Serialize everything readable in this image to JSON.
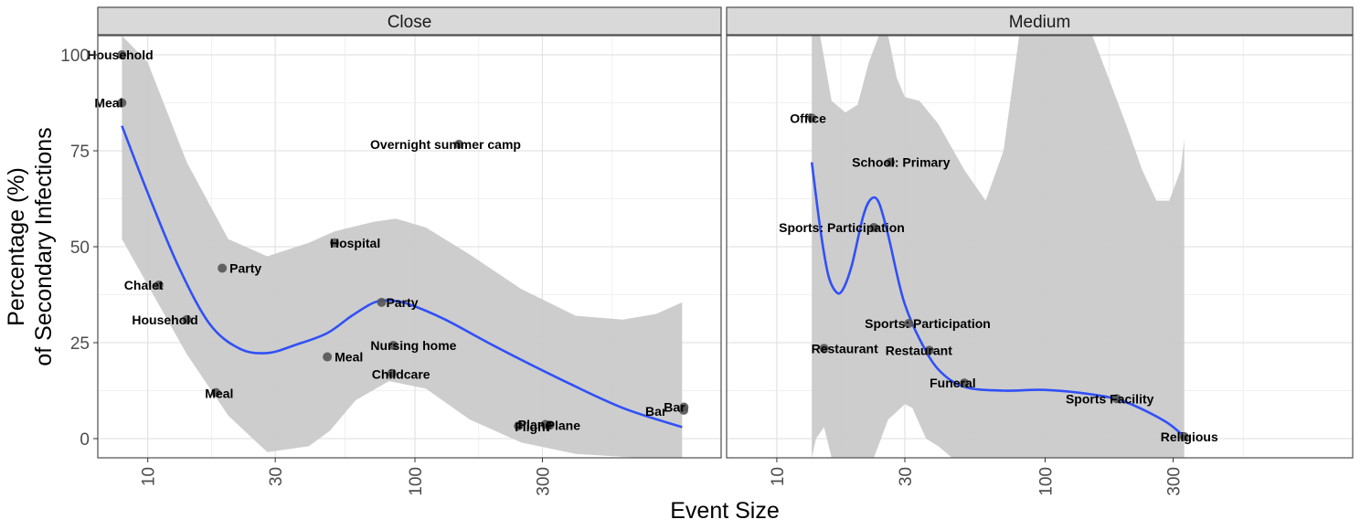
{
  "chart_data": {
    "type": "scatter",
    "xlabel": "Event Size",
    "ylabel_lines": [
      "Percentage (%)",
      "of Secondary Infections"
    ],
    "x_scale": "log10",
    "xlim": [
      6.5,
      1400
    ],
    "ylim": [
      -5,
      105
    ],
    "x_ticks": [
      10,
      30,
      100,
      300
    ],
    "y_ticks": [
      0,
      25,
      50,
      75,
      100
    ],
    "grid": true,
    "panels": [
      {
        "strip": "Close",
        "points": [
          {
            "label": "Household",
            "x": 8,
            "y": 100
          },
          {
            "label": "Meal",
            "x": 8,
            "y": 87.5
          },
          {
            "label": "Chalet",
            "x": 11,
            "y": 40
          },
          {
            "label": "Household",
            "x": 14,
            "y": 31
          },
          {
            "label": "Party",
            "x": 19,
            "y": 44.4
          },
          {
            "label": "Meal",
            "x": 18,
            "y": 12
          },
          {
            "label": "Hospital",
            "x": 50,
            "y": 51
          },
          {
            "label": "Meal",
            "x": 47,
            "y": 21.3
          },
          {
            "label": "Party",
            "x": 75,
            "y": 35.5
          },
          {
            "label": "Nursing home",
            "x": 83,
            "y": 24.3
          },
          {
            "label": "Childcare",
            "x": 82,
            "y": 17
          },
          {
            "label": "Overnight summer camp",
            "x": 146,
            "y": 76.7
          },
          {
            "label": "Flight",
            "x": 244,
            "y": 3.3
          },
          {
            "label": "Plane",
            "x": 308,
            "y": 3.7
          },
          {
            "label": "Plane",
            "x": 320,
            "y": 3.5
          },
          {
            "label": "Bar",
            "x": 1014,
            "y": 7.4
          },
          {
            "label": "Bar",
            "x": 1016,
            "y": 8.2
          }
        ],
        "smooth_fit": [
          [
            8,
            81.5
          ],
          [
            10,
            64
          ],
          [
            13,
            45
          ],
          [
            17,
            30
          ],
          [
            22,
            23.5
          ],
          [
            28,
            22.3
          ],
          [
            36,
            24.5
          ],
          [
            47,
            27.5
          ],
          [
            58,
            32
          ],
          [
            70,
            35.4
          ],
          [
            80,
            36
          ],
          [
            95,
            35
          ],
          [
            130,
            31
          ],
          [
            200,
            24
          ],
          [
            350,
            15.5
          ],
          [
            600,
            8
          ],
          [
            1000,
            3
          ]
        ],
        "smooth_ci": {
          "upper": [
            [
              8,
              105
            ],
            [
              10,
              98
            ],
            [
              14,
              72
            ],
            [
              20,
              52
            ],
            [
              28,
              47.5
            ],
            [
              40,
              51
            ],
            [
              50,
              54
            ],
            [
              70,
              56.5
            ],
            [
              85,
              57.3
            ],
            [
              110,
              55
            ],
            [
              160,
              48
            ],
            [
              250,
              39
            ],
            [
              400,
              32
            ],
            [
              600,
              31
            ],
            [
              800,
              32.5
            ],
            [
              1000,
              35.5
            ]
          ],
          "lower": [
            [
              8,
              52
            ],
            [
              10,
              40
            ],
            [
              14,
              22
            ],
            [
              20,
              6
            ],
            [
              28,
              -3.5
            ],
            [
              40,
              -2
            ],
            [
              48,
              2
            ],
            [
              60,
              10
            ],
            [
              80,
              15
            ],
            [
              110,
              13
            ],
            [
              160,
              5
            ],
            [
              250,
              -1
            ],
            [
              400,
              -4
            ],
            [
              700,
              -5
            ],
            [
              1000,
              -5
            ]
          ]
        }
      },
      {
        "strip": "Medium",
        "points": [
          {
            "label": "Office",
            "x": 13.5,
            "y": 83.5
          },
          {
            "label": "School: Primary",
            "x": 26.5,
            "y": 72
          },
          {
            "label": "Sports: Participation",
            "x": 23,
            "y": 55
          },
          {
            "label": "Sports: Participation",
            "x": 31,
            "y": 30
          },
          {
            "label": "Restaurant",
            "x": 15,
            "y": 23.5
          },
          {
            "label": "Restaurant",
            "x": 37,
            "y": 23
          },
          {
            "label": "Funeral",
            "x": 50,
            "y": 14.5
          },
          {
            "label": "Sports Facility",
            "x": 185,
            "y": 10.4
          },
          {
            "label": "Religious",
            "x": 330,
            "y": 0.5
          }
        ],
        "smooth_fit": [
          [
            13.5,
            72
          ],
          [
            14.5,
            55
          ],
          [
            15.5,
            43
          ],
          [
            16.5,
            38.5
          ],
          [
            17.5,
            38.5
          ],
          [
            19,
            45
          ],
          [
            21,
            58
          ],
          [
            22.5,
            62.5
          ],
          [
            24,
            61.5
          ],
          [
            26,
            53
          ],
          [
            28,
            43
          ],
          [
            30,
            35
          ],
          [
            34,
            26
          ],
          [
            40,
            18
          ],
          [
            50,
            13.5
          ],
          [
            70,
            12.5
          ],
          [
            100,
            12.7
          ],
          [
            150,
            11.5
          ],
          [
            200,
            9.5
          ],
          [
            280,
            4.5
          ],
          [
            330,
            0.5
          ]
        ],
        "smooth_ci": {
          "upper": [
            [
              13.5,
              105
            ],
            [
              14.5,
              105
            ],
            [
              16,
              88
            ],
            [
              18,
              85
            ],
            [
              20,
              87
            ],
            [
              22,
              98
            ],
            [
              24,
              105
            ],
            [
              26,
              105
            ],
            [
              28,
              94
            ],
            [
              30,
              89
            ],
            [
              34,
              88
            ],
            [
              40,
              82
            ],
            [
              50,
              70
            ],
            [
              60,
              62
            ],
            [
              70,
              75
            ],
            [
              80,
              105
            ],
            [
              150,
              105
            ],
            [
              170,
              95
            ],
            [
              200,
              82
            ],
            [
              230,
              70
            ],
            [
              260,
              62
            ],
            [
              290,
              62
            ],
            [
              320,
              70
            ],
            [
              330,
              78
            ]
          ],
          "lower": [
            [
              330,
              -5
            ],
            [
              260,
              -5
            ],
            [
              200,
              -5
            ],
            [
              100,
              -5
            ],
            [
              60,
              -5
            ],
            [
              45,
              -5
            ],
            [
              40,
              -2
            ],
            [
              36,
              0
            ],
            [
              32,
              8
            ],
            [
              30,
              9
            ],
            [
              28,
              7
            ],
            [
              26,
              5
            ],
            [
              23,
              -5
            ],
            [
              20,
              -5
            ],
            [
              16,
              -5
            ],
            [
              15,
              3
            ],
            [
              14,
              0
            ],
            [
              13.5,
              -5
            ]
          ]
        }
      }
    ]
  },
  "colors": {
    "point": "#555555",
    "line": "#3050f8",
    "ribbon": "#c8c8c8",
    "strip_bg": "#d9d9d9",
    "grid_major": "#e3e3e3",
    "grid_minor": "#f0f0f0",
    "panel_border": "#4d4d4d"
  }
}
